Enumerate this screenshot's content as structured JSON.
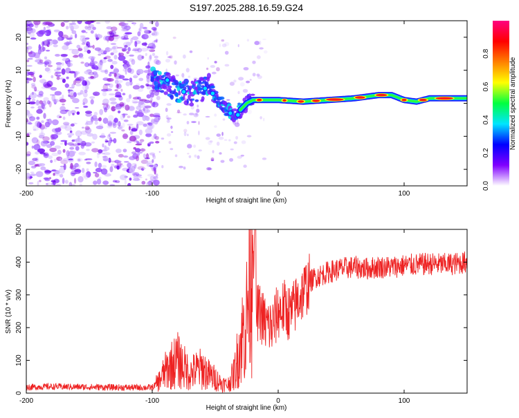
{
  "title": "S197.2025.288.16.59.G24",
  "chart_data": [
    {
      "type": "heatmap",
      "title": "S197.2025.288.16.59.G24",
      "xlabel": "Height of straight line (km)",
      "ylabel": "Frequency (Hz)",
      "xlim": [
        -200,
        150
      ],
      "ylim": [
        -25,
        25
      ],
      "x_ticks": [
        -200,
        -100,
        0,
        100
      ],
      "x_tick_labels": [
        "-200",
        "-100",
        "0",
        "100"
      ],
      "y_ticks": [
        -20,
        -10,
        0,
        10,
        20
      ],
      "y_tick_labels": [
        "-20",
        "-10",
        "0",
        "10",
        "20"
      ],
      "noise_region_x": [
        -200,
        -100
      ],
      "ridge": {
        "x": [
          -100,
          -90,
          -80,
          -70,
          -60,
          -55,
          -50,
          -45,
          -40,
          -35,
          -30,
          -25,
          -20,
          -10,
          0,
          20,
          40,
          60,
          70,
          80,
          90,
          100,
          110,
          120,
          130,
          140,
          150
        ],
        "y": [
          8,
          6,
          4,
          3,
          4,
          5,
          2,
          0,
          -2,
          -3,
          -2,
          0,
          1,
          1,
          1,
          0.5,
          1,
          1.5,
          2,
          2.5,
          2.5,
          1,
          0.5,
          1.5,
          1.5,
          1.5,
          1.5
        ]
      },
      "colorbar": {
        "label": "Normalized spectral amplitude",
        "range": [
          0,
          1
        ],
        "ticks": [
          0.0,
          0.2,
          0.4,
          0.6,
          0.8
        ],
        "tick_labels": [
          "0.0",
          "0.2",
          "0.4",
          "0.6",
          "0.8"
        ],
        "colors": [
          "#ffffff",
          "#8000ff",
          "#0000ff",
          "#00e5ff",
          "#00ff40",
          "#ffff00",
          "#ff8000",
          "#ff0000",
          "#ff0080"
        ]
      }
    },
    {
      "type": "line",
      "xlabel": "Height of straight line (km)",
      "ylabel": "SNR (10 * v/v)",
      "xlim": [
        -200,
        150
      ],
      "ylim": [
        0,
        500
      ],
      "x_ticks": [
        -200,
        -100,
        0,
        100
      ],
      "x_tick_labels": [
        "-200",
        "-100",
        "0",
        "100"
      ],
      "y_ticks": [
        0,
        100,
        200,
        300,
        400,
        500
      ],
      "y_tick_labels": [
        "0",
        "100",
        "200",
        "300",
        "400",
        "500"
      ],
      "series": [
        {
          "name": "SNR",
          "color": "#ee2222",
          "x": [
            -200,
            -180,
            -160,
            -140,
            -120,
            -100,
            -95,
            -90,
            -85,
            -80,
            -75,
            -70,
            -65,
            -60,
            -55,
            -50,
            -45,
            -40,
            -35,
            -30,
            -25,
            -20,
            -18,
            -15,
            -10,
            -5,
            0,
            5,
            10,
            15,
            20,
            25,
            30,
            40,
            50,
            60,
            70,
            80,
            90,
            100,
            110,
            120,
            130,
            140,
            150
          ],
          "y": [
            18,
            20,
            19,
            18,
            17,
            17,
            35,
            65,
            85,
            100,
            80,
            60,
            70,
            75,
            55,
            45,
            30,
            25,
            60,
            150,
            230,
            500,
            240,
            250,
            210,
            200,
            250,
            260,
            240,
            280,
            310,
            340,
            355,
            370,
            380,
            385,
            380,
            385,
            385,
            390,
            392,
            395,
            393,
            395,
            400
          ]
        }
      ]
    }
  ]
}
